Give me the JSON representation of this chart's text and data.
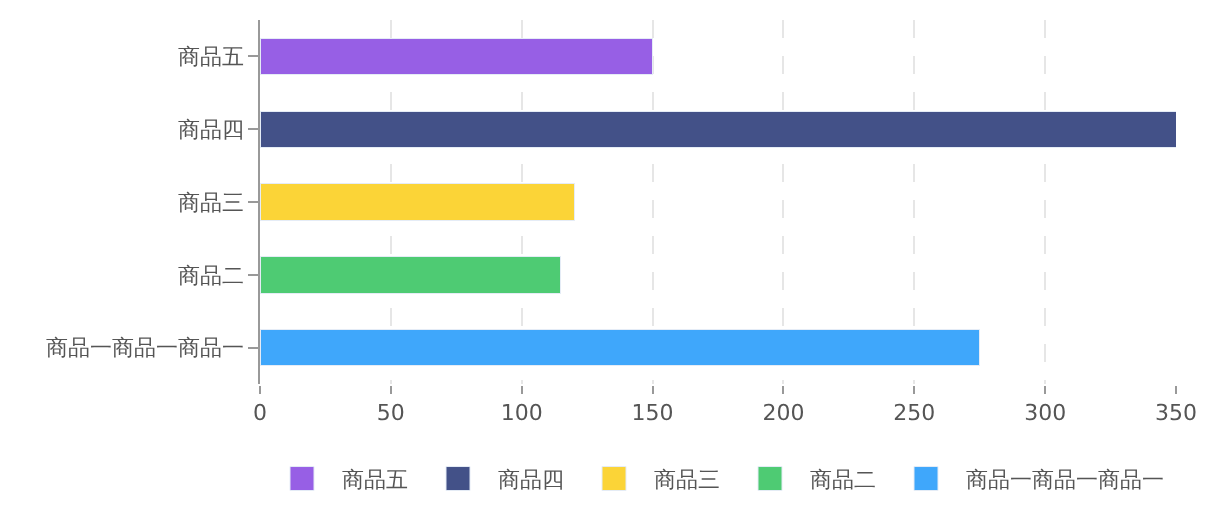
{
  "chart_data": {
    "type": "bar",
    "orientation": "horizontal",
    "stacked": true,
    "categories": [
      "商品五",
      "商品四",
      "商品三",
      "商品二",
      "商品一商品一商品一"
    ],
    "series": [
      {
        "name": "商品一商品一商品一",
        "color": "#3fa7fb",
        "values": [
          null,
          null,
          null,
          null,
          275
        ]
      },
      {
        "name": "商品二",
        "color": "#4ecb73",
        "values": [
          null,
          null,
          null,
          115,
          null
        ]
      },
      {
        "name": "商品三",
        "color": "#fbd437",
        "values": [
          null,
          null,
          120,
          null,
          null
        ]
      },
      {
        "name": "商品四",
        "color": "#435188",
        "values": [
          null,
          350,
          null,
          null,
          null
        ]
      },
      {
        "name": "商品五",
        "color": "#975fe5",
        "values": [
          150,
          null,
          null,
          null,
          null
        ]
      }
    ],
    "xlim": [
      0,
      350
    ],
    "xticks": [
      0,
      50,
      100,
      150,
      200,
      250,
      300,
      350
    ],
    "grid": "x",
    "legend": "bottom"
  }
}
